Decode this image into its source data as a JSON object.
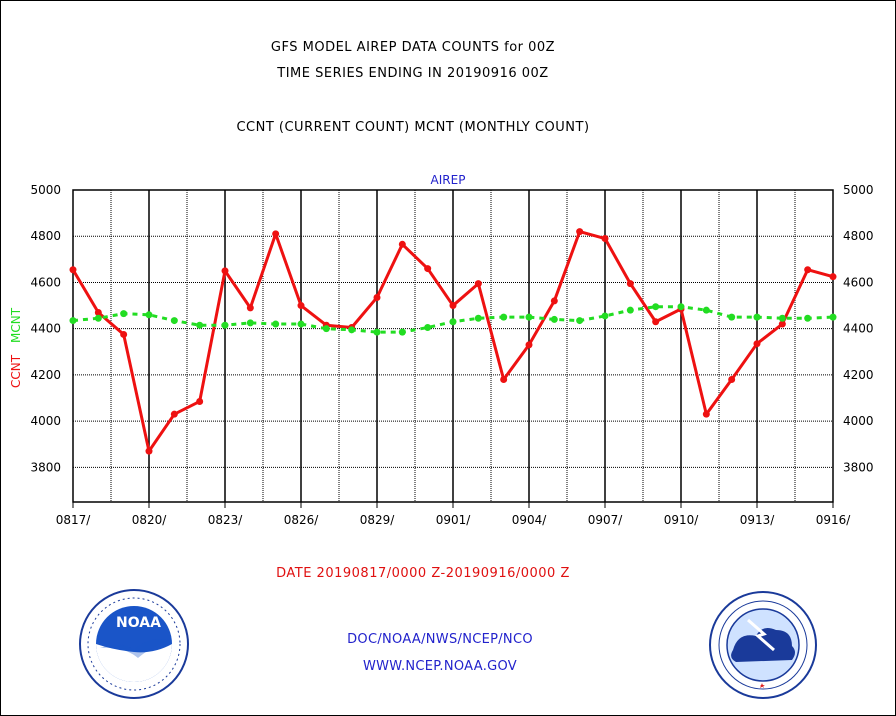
{
  "header": {
    "title_line1": "GFS MODEL AIREP DATA COUNTS for 00Z",
    "title_line2": "TIME SERIES ENDING IN 20190916 00Z",
    "subtitle": "CCNT (CURRENT COUNT) MCNT (MONTHLY COUNT)"
  },
  "footer": {
    "date_range": "DATE 20190817/0000 Z-20190916/0000 Z",
    "org": "DOC/NOAA/NWS/NCEP/NCO",
    "url": "WWW.NCEP.NOAA.GOV"
  },
  "logos": {
    "noaa_text": "NOAA",
    "noaa_icon": "noaa-logo",
    "nws_icon": "national-weather-service-logo"
  },
  "chart_data": {
    "type": "line",
    "title": "AIREP",
    "ylabel_left": "CCNT",
    "ylabel_right": "MCNT",
    "ylim": [
      3650,
      5000
    ],
    "yticks": [
      3800,
      4000,
      4200,
      4400,
      4600,
      4800,
      5000
    ],
    "grid": true,
    "x": [
      "0817",
      "0818",
      "0819",
      "0820",
      "0821",
      "0822",
      "0823",
      "0824",
      "0825",
      "0826",
      "0827",
      "0828",
      "0829",
      "0830",
      "0831",
      "0901",
      "0902",
      "0903",
      "0904",
      "0905",
      "0906",
      "0907",
      "0908",
      "0909",
      "0910",
      "0911",
      "0912",
      "0913",
      "0914",
      "0915",
      "0916"
    ],
    "xtick_labels": [
      "0817/",
      "0820/",
      "0823/",
      "0826/",
      "0829/",
      "0901/",
      "0904/",
      "0907/",
      "0910/",
      "0913/",
      "0916/"
    ],
    "xtick_index": [
      0,
      3,
      6,
      9,
      12,
      15,
      18,
      21,
      24,
      27,
      30
    ],
    "series": [
      {
        "name": "CCNT",
        "color": "#ee1111",
        "style": "solid",
        "values": [
          4655,
          4470,
          4375,
          3870,
          4030,
          4085,
          4650,
          4490,
          4810,
          4500,
          4415,
          4405,
          4535,
          4765,
          4660,
          4500,
          4595,
          4180,
          4330,
          4520,
          4820,
          4790,
          4595,
          4430,
          4485,
          4030,
          4180,
          4335,
          4420,
          4655,
          4625
        ]
      },
      {
        "name": "MCNT",
        "color": "#22dd22",
        "style": "dashed",
        "values": [
          4435,
          4445,
          4465,
          4460,
          4435,
          4415,
          4415,
          4425,
          4420,
          4420,
          4400,
          4395,
          4385,
          4385,
          4405,
          4430,
          4445,
          4450,
          4450,
          4440,
          4435,
          4455,
          4480,
          4495,
          4495,
          4480,
          4450,
          4450,
          4445,
          4445,
          4450
        ]
      }
    ]
  }
}
